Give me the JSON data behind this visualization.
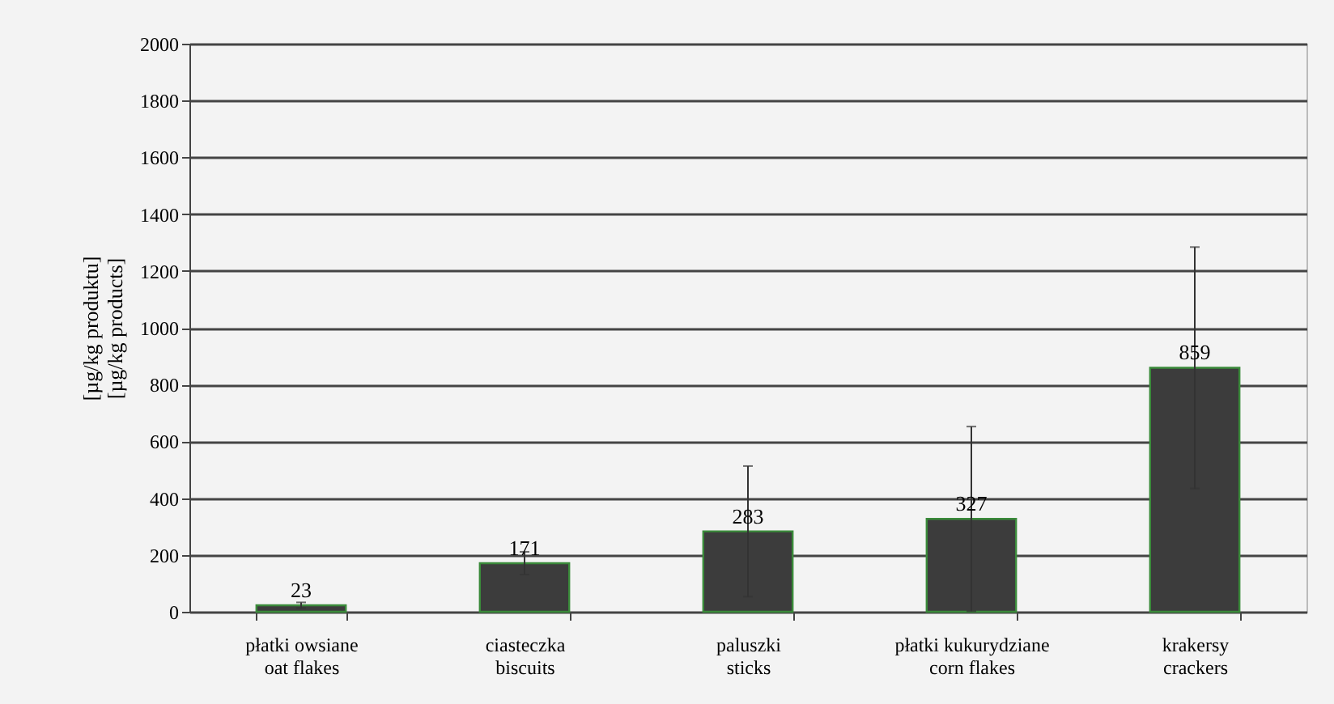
{
  "chart_data": {
    "type": "bar",
    "ylabel": "[µg/kg produktu]\n[µg/kg products]",
    "categories": [
      "płatki owsiane\noat flakes",
      "ciasteczka\nbiscuits",
      "paluszki\nsticks",
      "płatki kukurydziane\ncorn flakes",
      "krakersy\ncrackers"
    ],
    "values": [
      23,
      171,
      283,
      327,
      859
    ],
    "errors": [
      10,
      40,
      230,
      325,
      425
    ],
    "color": "#3c3c3c",
    "ylim": [
      0,
      2000
    ],
    "yticks": [
      0,
      200,
      400,
      600,
      800,
      1000,
      1200,
      1400,
      1600,
      1800,
      2000
    ],
    "grid": "y",
    "data_labels": true
  }
}
